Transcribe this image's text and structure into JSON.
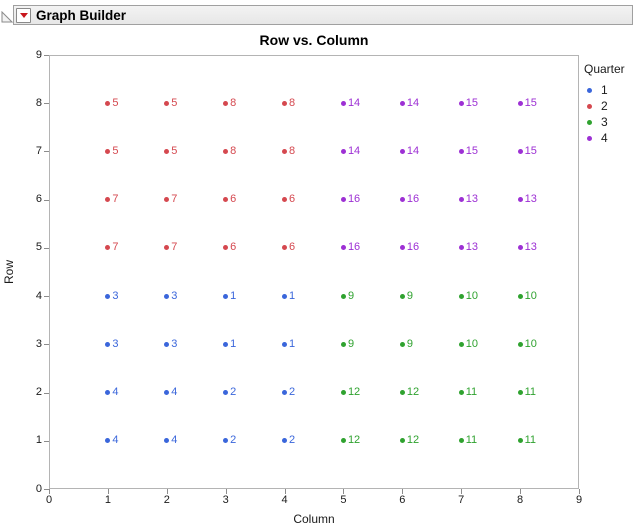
{
  "header": {
    "title": "Graph Builder"
  },
  "chart_data": {
    "type": "scatter",
    "title": "Row vs. Column",
    "xlabel": "Column",
    "ylabel": "Row",
    "xlim": [
      0,
      9
    ],
    "ylim": [
      0,
      9
    ],
    "xticks": [
      0,
      1,
      2,
      3,
      4,
      5,
      6,
      7,
      8,
      9
    ],
    "yticks": [
      0,
      1,
      2,
      3,
      4,
      5,
      6,
      7,
      8,
      9
    ],
    "grid": false,
    "legend_position": "right",
    "legend_title": "Quarter",
    "series": [
      {
        "name": "1",
        "color": "#3a66db",
        "points": [
          [
            1,
            4,
            "3"
          ],
          [
            2,
            4,
            "3"
          ],
          [
            3,
            4,
            "1"
          ],
          [
            4,
            4,
            "1"
          ],
          [
            1,
            3,
            "3"
          ],
          [
            2,
            3,
            "3"
          ],
          [
            3,
            3,
            "1"
          ],
          [
            4,
            3,
            "1"
          ],
          [
            1,
            2,
            "4"
          ],
          [
            2,
            2,
            "4"
          ],
          [
            3,
            2,
            "2"
          ],
          [
            4,
            2,
            "2"
          ],
          [
            1,
            1,
            "4"
          ],
          [
            2,
            1,
            "4"
          ],
          [
            3,
            1,
            "2"
          ],
          [
            4,
            1,
            "2"
          ]
        ]
      },
      {
        "name": "2",
        "color": "#d5484f",
        "points": [
          [
            1,
            8,
            "5"
          ],
          [
            2,
            8,
            "5"
          ],
          [
            3,
            8,
            "8"
          ],
          [
            4,
            8,
            "8"
          ],
          [
            1,
            7,
            "5"
          ],
          [
            2,
            7,
            "5"
          ],
          [
            3,
            7,
            "8"
          ],
          [
            4,
            7,
            "8"
          ],
          [
            1,
            6,
            "7"
          ],
          [
            2,
            6,
            "7"
          ],
          [
            3,
            6,
            "6"
          ],
          [
            4,
            6,
            "6"
          ],
          [
            1,
            5,
            "7"
          ],
          [
            2,
            5,
            "7"
          ],
          [
            3,
            5,
            "6"
          ],
          [
            4,
            5,
            "6"
          ]
        ]
      },
      {
        "name": "3",
        "color": "#2fa22f",
        "points": [
          [
            5,
            4,
            "9"
          ],
          [
            6,
            4,
            "9"
          ],
          [
            7,
            4,
            "10"
          ],
          [
            8,
            4,
            "10"
          ],
          [
            5,
            3,
            "9"
          ],
          [
            6,
            3,
            "9"
          ],
          [
            7,
            3,
            "10"
          ],
          [
            8,
            3,
            "10"
          ],
          [
            5,
            2,
            "12"
          ],
          [
            6,
            2,
            "12"
          ],
          [
            7,
            2,
            "11"
          ],
          [
            8,
            2,
            "11"
          ],
          [
            5,
            1,
            "12"
          ],
          [
            6,
            1,
            "12"
          ],
          [
            7,
            1,
            "11"
          ],
          [
            8,
            1,
            "11"
          ]
        ]
      },
      {
        "name": "4",
        "color": "#9d30d4",
        "points": [
          [
            5,
            8,
            "14"
          ],
          [
            6,
            8,
            "14"
          ],
          [
            7,
            8,
            "15"
          ],
          [
            8,
            8,
            "15"
          ],
          [
            5,
            7,
            "14"
          ],
          [
            6,
            7,
            "14"
          ],
          [
            7,
            7,
            "15"
          ],
          [
            8,
            7,
            "15"
          ],
          [
            5,
            6,
            "16"
          ],
          [
            6,
            6,
            "16"
          ],
          [
            7,
            6,
            "13"
          ],
          [
            8,
            6,
            "13"
          ],
          [
            5,
            5,
            "16"
          ],
          [
            6,
            5,
            "16"
          ],
          [
            7,
            5,
            "13"
          ],
          [
            8,
            5,
            "13"
          ]
        ]
      }
    ]
  }
}
